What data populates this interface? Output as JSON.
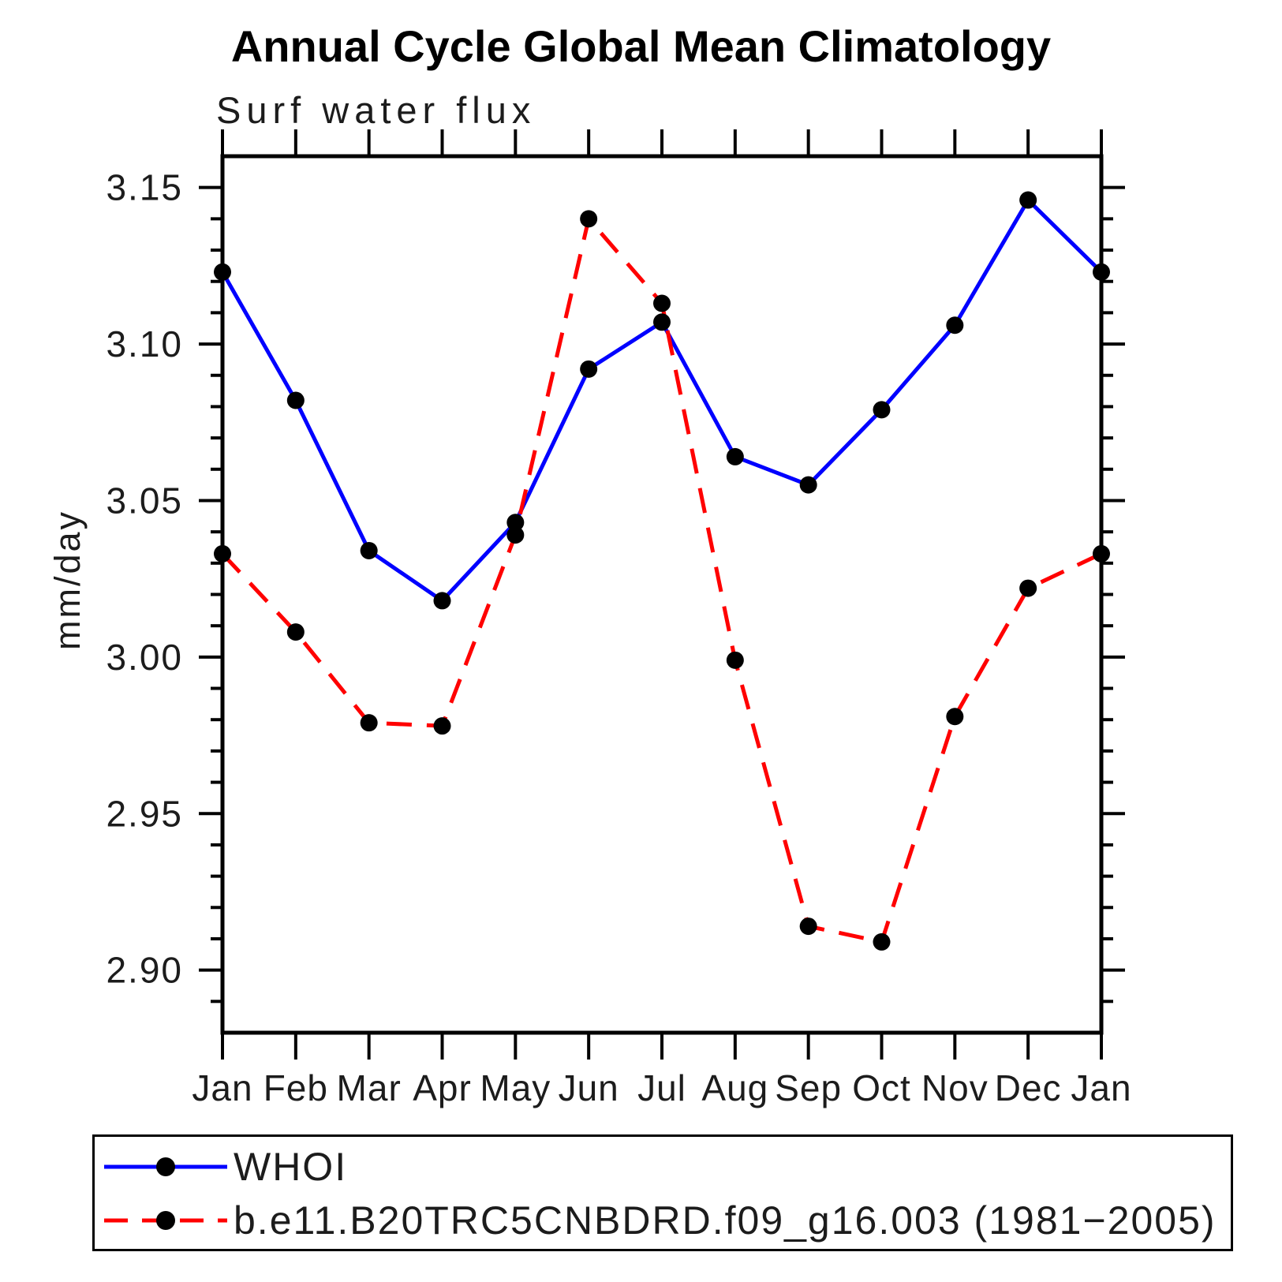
{
  "chart_data": {
    "type": "line",
    "title": "Annual Cycle Global Mean Climatology",
    "subtitle": "Surf water flux",
    "ylabel": "mm/day",
    "xlabel": "",
    "categories": [
      "Jan",
      "Feb",
      "Mar",
      "Apr",
      "May",
      "Jun",
      "Jul",
      "Aug",
      "Sep",
      "Oct",
      "Nov",
      "Dec",
      "Jan"
    ],
    "series": [
      {
        "name": "WHOI",
        "color": "#0000ff",
        "line_style": "solid",
        "marker": "circle",
        "values": [
          3.123,
          3.082,
          3.034,
          3.018,
          3.043,
          3.092,
          3.107,
          3.064,
          3.055,
          3.079,
          3.106,
          3.146,
          3.123
        ]
      },
      {
        "name": "b.e11.B20TRC5CNBDRD.f09_g16.003 (1981−2005)",
        "color": "#ff0000",
        "line_style": "dashed",
        "marker": "circle",
        "values": [
          3.033,
          3.008,
          2.979,
          2.978,
          3.039,
          3.14,
          3.113,
          2.999,
          2.914,
          2.909,
          2.981,
          3.022,
          3.033
        ]
      }
    ],
    "marker_color": "#000000",
    "axis_color": "#000000",
    "ylim": [
      2.88,
      3.16
    ],
    "yticks_major": [
      2.9,
      2.95,
      3.0,
      3.05,
      3.1,
      3.15
    ],
    "ytick_minor_step": 0.01,
    "grid": false,
    "legend_position": "bottom-left-box"
  }
}
